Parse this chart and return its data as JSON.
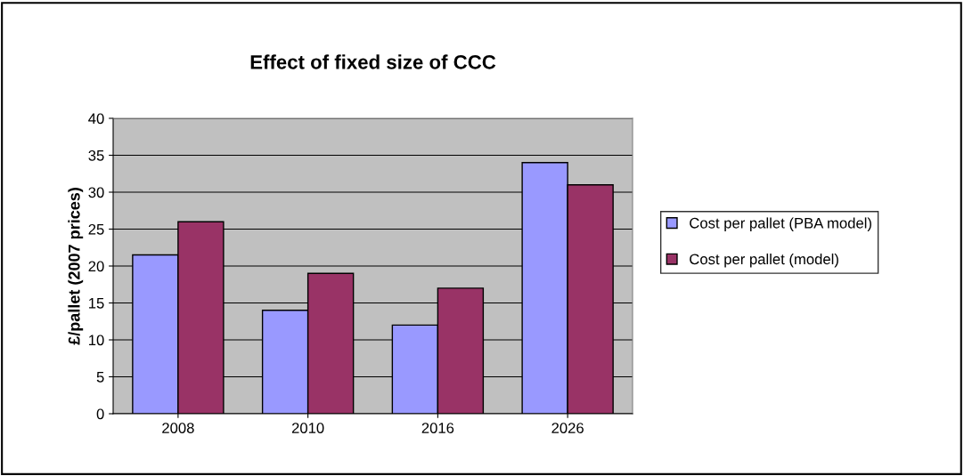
{
  "chart_data": {
    "type": "bar",
    "title": "Effect of fixed size of CCC",
    "ylabel": "£/pallet (2007 prices)",
    "categories": [
      "2008",
      "2010",
      "2016",
      "2026"
    ],
    "series": [
      {
        "name": "Cost per pallet (PBA model)",
        "color": "#9999ff",
        "values": [
          21.5,
          14,
          12,
          34
        ]
      },
      {
        "name": "Cost per pallet (model)",
        "color": "#993366",
        "values": [
          26,
          19,
          17,
          31
        ]
      }
    ],
    "ylim": [
      0,
      40
    ],
    "yticks": [
      0,
      5,
      10,
      15,
      20,
      25,
      30,
      35,
      40
    ],
    "grid": "y",
    "legend": "right"
  }
}
